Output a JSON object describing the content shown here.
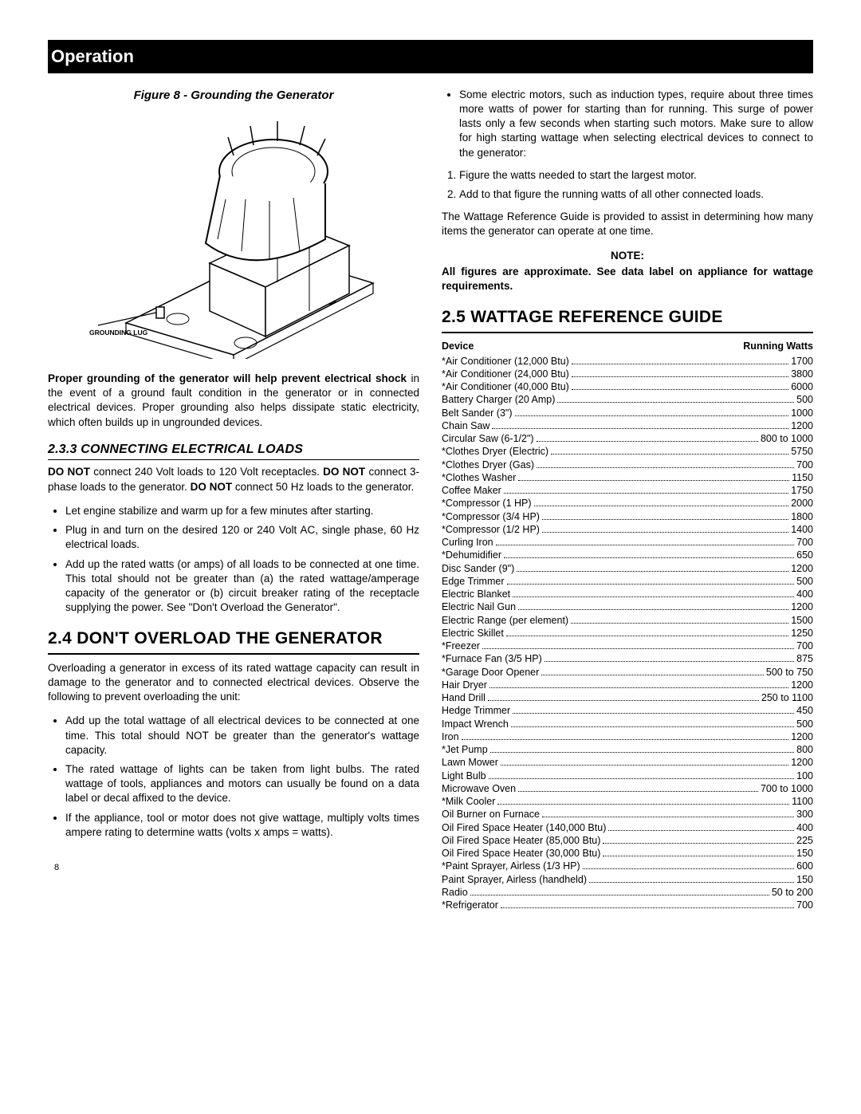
{
  "section_header": "Operation",
  "figure": {
    "caption": "Figure 8 - Grounding the Generator",
    "label": "GROUNDING LUG"
  },
  "grounding_paragraph": {
    "bold_lead": "Proper grounding of the generator will help prevent electrical shock",
    "rest": " in the event of a ground fault condition in the generator or in connected electrical devices. Proper grounding also helps dissipate static electricity, which often builds up in ungrounded devices."
  },
  "s233": {
    "title": "2.3.3  CONNECTING ELECTRICAL LOADS",
    "p1_a": "DO NOT",
    "p1_b": " connect 240 Volt loads to 120 Volt receptacles. ",
    "p1_c": "DO NOT",
    "p1_d": " connect 3-phase loads to the generator. ",
    "p1_e": "DO NOT",
    "p1_f": " connect 50 Hz loads to the generator.",
    "bullets": [
      "Let engine stabilize and warm up for a few minutes after starting.",
      "Plug in and turn on the desired 120 or 240 Volt AC, single phase, 60 Hz electrical loads.",
      "Add up the rated watts (or amps) of all loads to be connected at one time. This total should not be greater than (a) the rated wattage/amperage capacity of the generator or (b) circuit breaker rating of the receptacle supplying the power. See \"Don't Overload the Generator\"."
    ]
  },
  "s24": {
    "title": "2.4  DON'T OVERLOAD THE GENERATOR",
    "p1": "Overloading a generator in excess of its rated wattage capacity can result in damage to the generator and to connected electrical devices. Observe the following to prevent overloading the unit:",
    "bullets": [
      "Add up the total wattage of all electrical devices to be connected at one time. This total should NOT be greater than the generator's wattage capacity.",
      "The rated wattage of lights can be taken from light bulbs. The rated wattage of tools, appliances and motors can usually be found on a data label or decal affixed to the device.",
      "If the appliance, tool or motor does not give wattage, multiply volts times ampere rating to determine watts (volts x amps = watts)."
    ]
  },
  "right": {
    "bullets": [
      "Some electric motors, such as induction types, require about three times more watts of power for starting than for running. This surge of power lasts only a few seconds when starting such motors. Make sure to allow for high starting wattage when selecting electrical devices to connect to the generator:"
    ],
    "numbers": [
      "Figure the watts needed to start the largest motor.",
      "Add to that figure the running watts of all other connected loads."
    ],
    "p1": "The Wattage Reference Guide is provided to assist in determining how many items the generator can operate at one time.",
    "note_label": "NOTE:",
    "note_text": "All figures are approximate. See data label on appliance for wattage requirements."
  },
  "s25": {
    "title": "2.5  WATTAGE REFERENCE GUIDE",
    "head_left": "Device",
    "head_right": "Running Watts",
    "rows": [
      {
        "d": "*Air Conditioner (12,000 Btu)",
        "w": "1700"
      },
      {
        "d": "*Air Conditioner (24,000 Btu)",
        "w": "3800"
      },
      {
        "d": "*Air Conditioner (40,000 Btu)",
        "w": "6000"
      },
      {
        "d": "Battery Charger (20 Amp)",
        "w": "500"
      },
      {
        "d": "Belt Sander (3\")",
        "w": "1000"
      },
      {
        "d": "Chain Saw",
        "w": "1200"
      },
      {
        "d": "Circular Saw (6-1/2\")",
        "w": "800 to 1000"
      },
      {
        "d": "*Clothes Dryer (Electric)",
        "w": "5750"
      },
      {
        "d": "*Clothes Dryer (Gas)",
        "w": "700"
      },
      {
        "d": "*Clothes Washer",
        "w": "1150"
      },
      {
        "d": "Coffee Maker",
        "w": "1750"
      },
      {
        "d": "*Compressor (1 HP)",
        "w": "2000"
      },
      {
        "d": "*Compressor (3/4 HP)",
        "w": "1800"
      },
      {
        "d": "*Compressor (1/2 HP)",
        "w": "1400"
      },
      {
        "d": "Curling Iron",
        "w": "700"
      },
      {
        "d": "*Dehumidifier",
        "w": "650"
      },
      {
        "d": "Disc Sander (9\")",
        "w": "1200"
      },
      {
        "d": "Edge Trimmer",
        "w": "500"
      },
      {
        "d": "Electric Blanket",
        "w": "400"
      },
      {
        "d": "Electric Nail Gun",
        "w": "1200"
      },
      {
        "d": "Electric Range (per element)",
        "w": "1500"
      },
      {
        "d": "Electric Skillet",
        "w": "1250"
      },
      {
        "d": "*Freezer",
        "w": "700"
      },
      {
        "d": "*Furnace Fan (3/5 HP)",
        "w": "875"
      },
      {
        "d": "*Garage Door Opener",
        "w": "500 to 750"
      },
      {
        "d": "Hair Dryer",
        "w": "1200"
      },
      {
        "d": "Hand Drill",
        "w": "250 to 1100"
      },
      {
        "d": "Hedge Trimmer",
        "w": "450"
      },
      {
        "d": "Impact Wrench",
        "w": "500"
      },
      {
        "d": "Iron",
        "w": "1200"
      },
      {
        "d": "*Jet Pump",
        "w": "800"
      },
      {
        "d": "Lawn Mower",
        "w": "1200"
      },
      {
        "d": "Light Bulb",
        "w": "100"
      },
      {
        "d": "Microwave Oven",
        "w": "700 to 1000"
      },
      {
        "d": "*Milk Cooler",
        "w": "1100"
      },
      {
        "d": "Oil Burner on Furnace",
        "w": "300"
      },
      {
        "d": "Oil Fired Space Heater (140,000 Btu)",
        "w": "400"
      },
      {
        "d": "Oil Fired Space Heater (85,000 Btu)",
        "w": "225"
      },
      {
        "d": "Oil Fired Space Heater (30,000 Btu)",
        "w": "150"
      },
      {
        "d": "*Paint Sprayer, Airless (1/3 HP)",
        "w": "600"
      },
      {
        "d": "Paint Sprayer, Airless (handheld)",
        "w": "150"
      },
      {
        "d": "Radio",
        "w": "50 to 200"
      },
      {
        "d": "*Refrigerator",
        "w": "700"
      }
    ]
  },
  "page_number": "8"
}
